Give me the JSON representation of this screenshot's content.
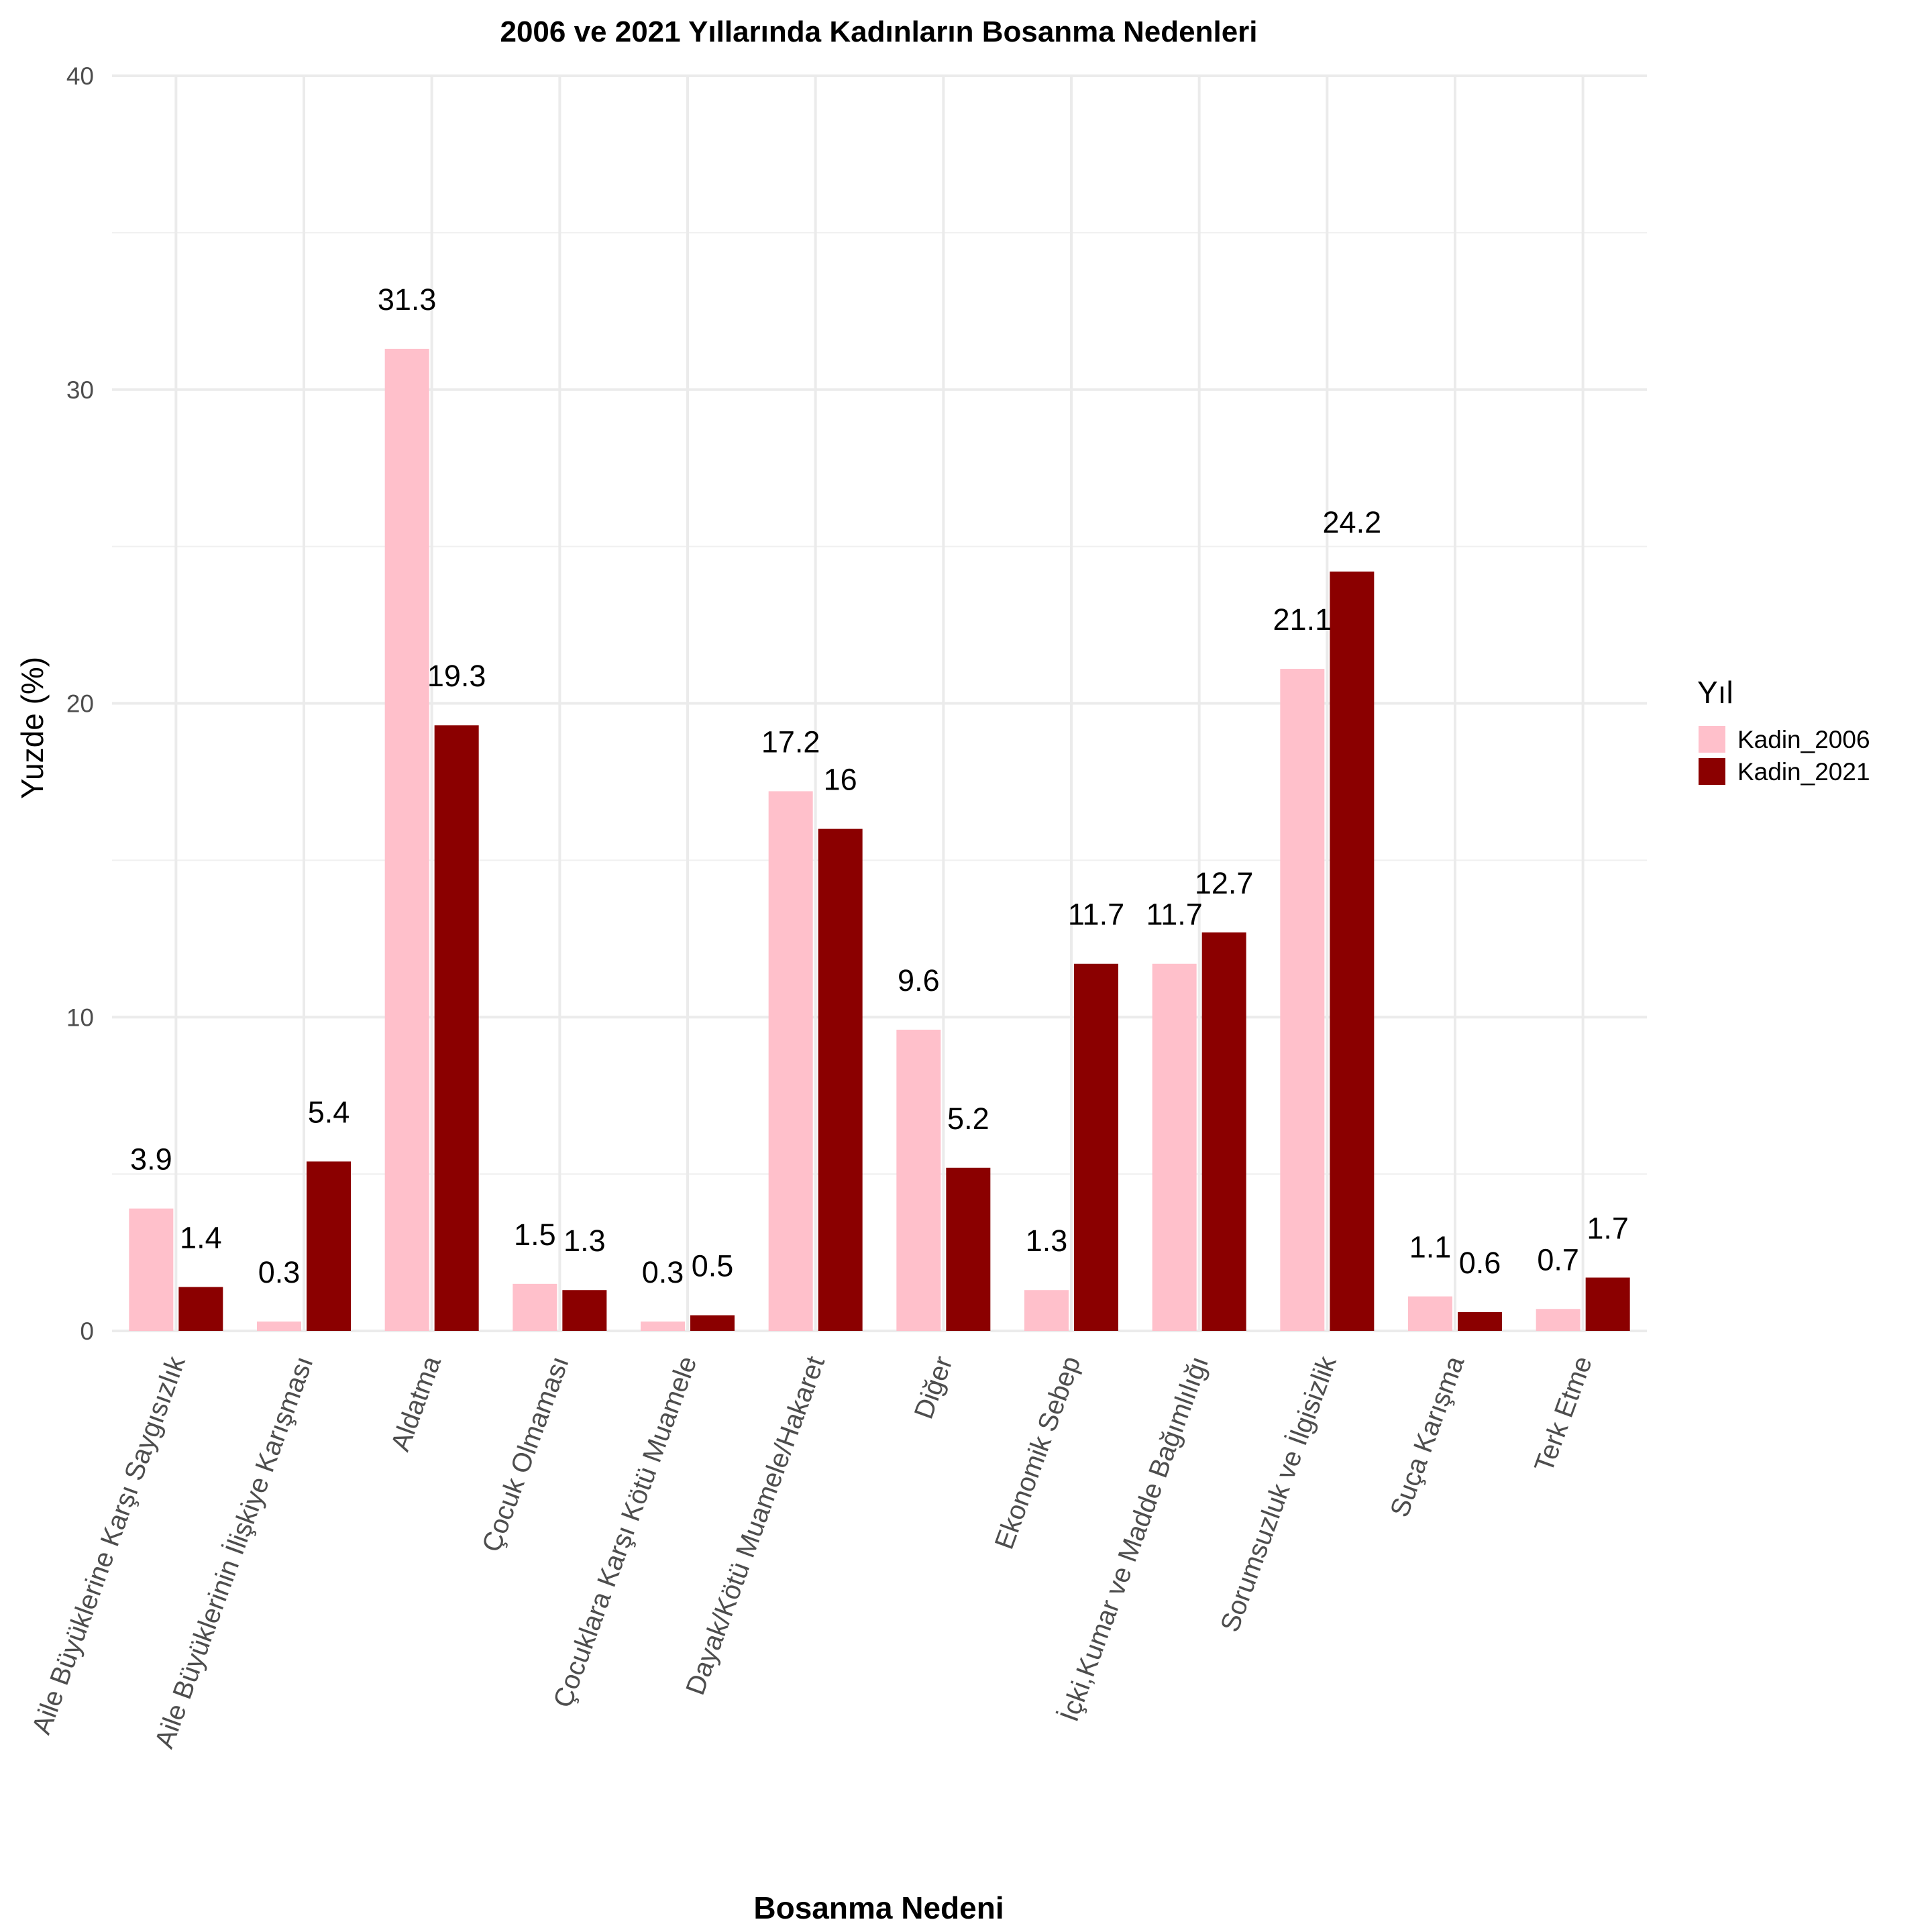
{
  "chart_data": {
    "type": "bar",
    "title": "2006 ve 2021 Yıllarında Kadınların Bosanma Nedenleri",
    "xlabel": "Bosanma Nedeni",
    "ylabel": "Yuzde (%)",
    "ylim": [
      0,
      40
    ],
    "yticks": [
      "0",
      "10",
      "20",
      "30",
      "40"
    ],
    "grid": true,
    "legend_position": "right",
    "legend_title": "Yıl",
    "categories": [
      "Aile Büyüklerine Karşı Saygısızlık",
      "Aile Büyüklerinin İlişkiye Karışması",
      "Aldatma",
      "Çocuk Olmaması",
      "Çocuklara Karşı Kötü Muamele",
      "Dayak/Kötü Muamele/Hakaret",
      "Diğer",
      "Ekonomik Sebep",
      "İçki,Kumar ve Madde Bağımlılığı",
      "Sorumsuzluk ve İlgisizlik",
      "Suça Karışma",
      "Terk Etme"
    ],
    "series": [
      {
        "name": "Kadin_2006",
        "color": "#FFC0CB",
        "values": [
          3.9,
          0.3,
          31.3,
          1.5,
          0.3,
          17.2,
          9.6,
          1.3,
          11.7,
          21.1,
          1.1,
          0.7
        ],
        "labels": [
          "3.9",
          "0.3",
          "31.3",
          "1.5",
          "0.3",
          "17.2",
          "9.6",
          "1.3",
          "11.7",
          "21.1",
          "1.1",
          "0.7"
        ]
      },
      {
        "name": "Kadin_2021",
        "color": "#8B0000",
        "values": [
          1.4,
          5.4,
          19.3,
          1.3,
          0.5,
          16,
          5.2,
          11.7,
          12.7,
          24.2,
          0.6,
          1.7
        ],
        "labels": [
          "1.4",
          "5.4",
          "19.3",
          "1.3",
          "0.5",
          "16",
          "5.2",
          "11.7",
          "12.7",
          "24.2",
          "0.6",
          "1.7"
        ]
      }
    ]
  }
}
